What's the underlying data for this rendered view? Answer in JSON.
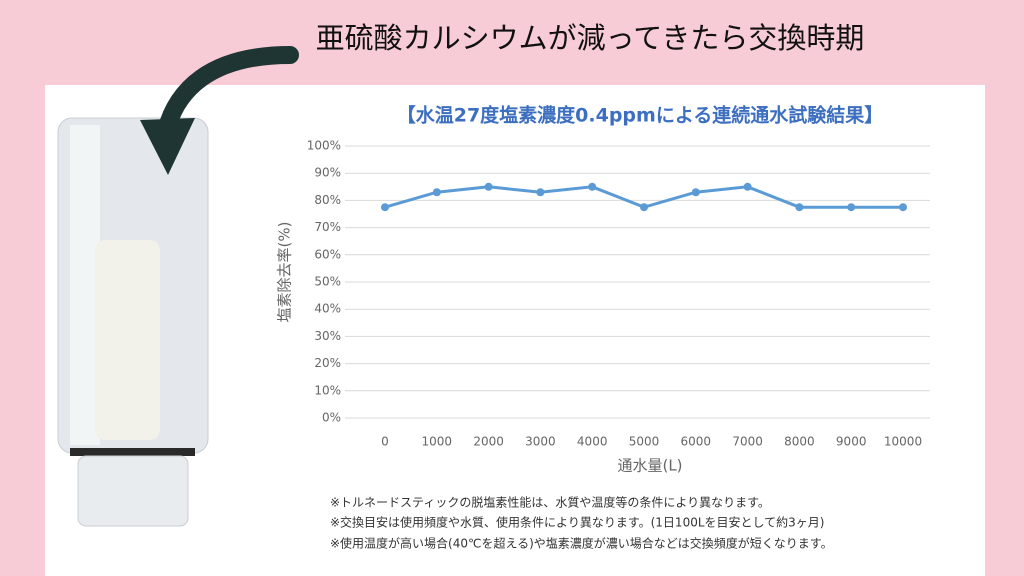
{
  "caption": "亜硫酸カルシウムが減ってきたら交換時期",
  "chart_data": {
    "type": "line",
    "title": "【水温27度塩素濃度0.4ppmによる連続通水試験結果】",
    "y_label": "塩素除去率(%)",
    "x_label": "通水量(L)",
    "categories": [
      "0",
      "1000",
      "2000",
      "3000",
      "4000",
      "5000",
      "6000",
      "7000",
      "8000",
      "9000",
      "10000"
    ],
    "values": [
      77.5,
      83,
      85,
      83,
      85,
      77.5,
      83,
      85,
      77.5,
      77.5,
      77.5
    ],
    "color": "#5b9bd5",
    "ylim": [
      0,
      100
    ],
    "yticks": [
      {
        "value": 0,
        "label": "0%"
      },
      {
        "value": 10,
        "label": "10%"
      },
      {
        "value": 20,
        "label": "20%"
      },
      {
        "value": 30,
        "label": "30%"
      },
      {
        "value": 40,
        "label": "40%"
      },
      {
        "value": 50,
        "label": "50%"
      },
      {
        "value": 60,
        "label": "60%"
      },
      {
        "value": 70,
        "label": "70%"
      },
      {
        "value": 80,
        "label": "80%"
      },
      {
        "value": 90,
        "label": "90%"
      },
      {
        "value": 100,
        "label": "100%"
      }
    ],
    "grid": true
  },
  "notes": [
    "※トルネードスティックの脱塩素性能は、水質や温度等の条件により異なります。",
    "※交換目安は使用頻度や水質、使用条件により異なります。(1日100Lを目安として約3ヶ月)",
    "※使用温度が高い場合(40℃を超える)や塩素濃度が濃い場合などは交換頻度が短くなります。"
  ]
}
